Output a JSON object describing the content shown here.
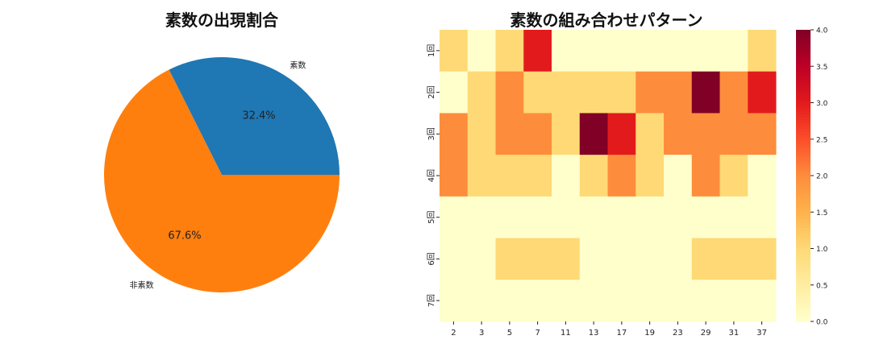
{
  "chart_data": [
    {
      "type": "pie",
      "title": "素数の出現割合",
      "labels": [
        "素数",
        "非素数"
      ],
      "values": [
        32.4,
        67.6
      ],
      "value_labels": [
        "32.4%",
        "67.6%"
      ],
      "colors": [
        "#1f77b4",
        "#ff7f0e"
      ],
      "startangle": 0
    },
    {
      "type": "heatmap",
      "title": "素数の組み合わせパターン",
      "x_categories": [
        "2",
        "3",
        "5",
        "7",
        "11",
        "13",
        "17",
        "19",
        "23",
        "29",
        "31",
        "37"
      ],
      "y_categories": [
        "1回",
        "2回",
        "3回",
        "4回",
        "5回",
        "6回",
        "7回"
      ],
      "values": [
        [
          1,
          0,
          1,
          3,
          0,
          0,
          0,
          0,
          0,
          0,
          0,
          1
        ],
        [
          0,
          1,
          2,
          1,
          1,
          1,
          1,
          2,
          2,
          4,
          2,
          3
        ],
        [
          2,
          1,
          2,
          2,
          1,
          4,
          3,
          1,
          2,
          2,
          2,
          2
        ],
        [
          2,
          1,
          1,
          1,
          0,
          1,
          2,
          1,
          0,
          2,
          1,
          0
        ],
        [
          0,
          0,
          0,
          0,
          0,
          0,
          0,
          0,
          0,
          0,
          0,
          0
        ],
        [
          0,
          0,
          1,
          1,
          1,
          0,
          0,
          0,
          0,
          1,
          1,
          1
        ],
        [
          0,
          0,
          0,
          0,
          0,
          0,
          0,
          0,
          0,
          0,
          0,
          0
        ]
      ],
      "colormap": "YlOrRd",
      "colorbar": {
        "range": [
          0.0,
          4.0
        ],
        "ticks": [
          "0.0",
          "0.5",
          "1.0",
          "1.5",
          "2.0",
          "2.5",
          "3.0",
          "3.5",
          "4.0"
        ]
      }
    }
  ]
}
